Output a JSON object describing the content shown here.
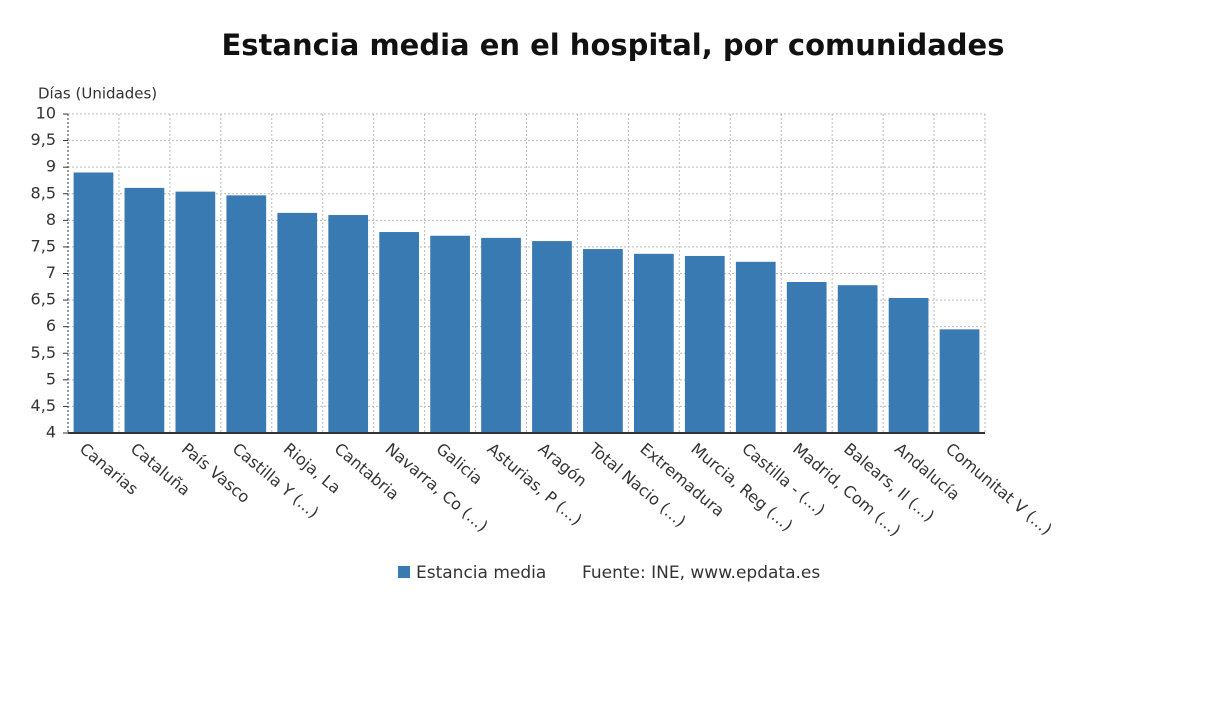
{
  "chart_data": {
    "type": "bar",
    "title": "Estancia media en el hospital, por comunidades",
    "y_label": "Días (Unidades)",
    "source": "Fuente: INE, www.epdata.es",
    "categories": [
      "Canarias",
      "Cataluña",
      "País Vasco",
      "Castilla Y (...)",
      "Rioja, La",
      "Cantabria",
      "Navarra, Co (...)",
      "Galicia",
      "Asturias, P (...)",
      "Aragón",
      "Total Nacio (...)",
      "Extremadura",
      "Murcia, Reg (...)",
      "Castilla - (...)",
      "Madrid, Com (...)",
      "Balears, Il (...)",
      "Andalucía",
      "Comunitat V (...)"
    ],
    "series": [
      {
        "name": "Estancia media",
        "color": "#3a7ab3",
        "values": [
          8.9,
          8.61,
          8.54,
          8.47,
          8.14,
          8.1,
          7.78,
          7.71,
          7.67,
          7.61,
          7.46,
          7.37,
          7.33,
          7.22,
          6.84,
          6.78,
          6.54,
          5.95
        ]
      }
    ],
    "ylim": [
      4,
      10
    ],
    "yticks": [
      4,
      {
        "value": 4.5,
        "label": "4,5"
      },
      5,
      {
        "value": 5.5,
        "label": "5,5"
      },
      6,
      {
        "value": 6.5,
        "label": "6,5"
      },
      7,
      {
        "value": 7.5,
        "label": "7,5"
      },
      8,
      {
        "value": 8.5,
        "label": "8,5"
      },
      9,
      {
        "value": 9.5,
        "label": "9,5"
      },
      10
    ],
    "grid": true
  }
}
